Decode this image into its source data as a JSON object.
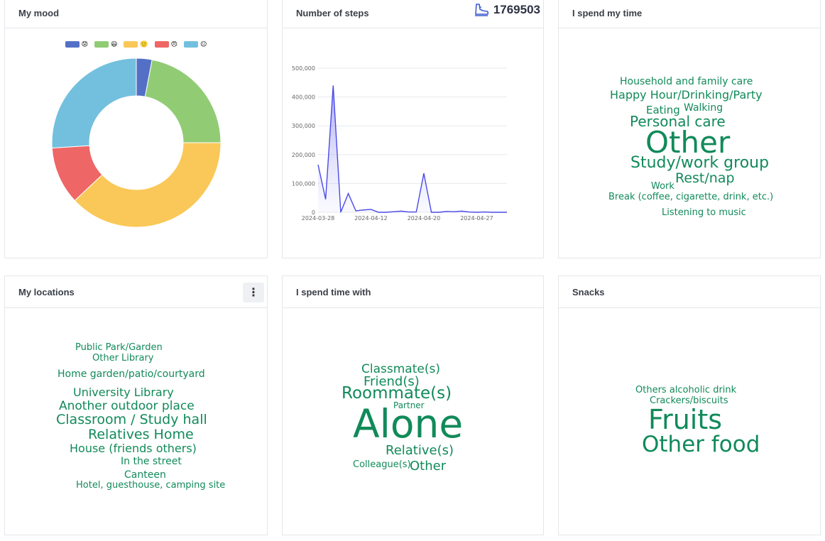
{
  "cards": {
    "mood": {
      "title": "My mood"
    },
    "steps": {
      "title": "Number of steps",
      "total": "1769503"
    },
    "time": {
      "title": "I spend my time"
    },
    "locations": {
      "title": "My locations",
      "menu_label": "⋮"
    },
    "with": {
      "title": "I spend time with"
    },
    "snacks": {
      "title": "Snacks"
    }
  },
  "icons": {
    "steps": "shoe-icon",
    "menu": "kebab-menu-icon"
  },
  "colors": {
    "word_cloud": "#118a5a",
    "steps_line": "#4a4ae8",
    "mood_1": "#5470c6",
    "mood_2": "#91cc75",
    "mood_3": "#fac858",
    "mood_4": "#ee6666",
    "mood_5": "#73c0de"
  },
  "mood_chart": {
    "type": "pie",
    "legend": [
      {
        "emoji": "😟",
        "color": "#5470c6"
      },
      {
        "emoji": "😃",
        "color": "#91cc75"
      },
      {
        "emoji": "🙂",
        "color": "#fac858"
      },
      {
        "emoji": "😠",
        "color": "#ee6666"
      },
      {
        "emoji": "😐",
        "color": "#73c0de"
      }
    ],
    "values": [
      3,
      22,
      38,
      11,
      26
    ]
  },
  "steps_chart": {
    "type": "area",
    "y_ticks": [
      "0",
      "100,000",
      "200,000",
      "300,000",
      "400,000",
      "500,000"
    ],
    "x_ticks": [
      "2024-03-28",
      "2024-04-12",
      "2024-04-20",
      "2024-04-27"
    ],
    "values": [
      165000,
      45000,
      440000,
      0,
      65000,
      5000,
      8000,
      10000,
      0,
      0,
      2000,
      4000,
      1000,
      1000,
      135000,
      0,
      0,
      3000,
      2000,
      4000,
      1000,
      0,
      1000,
      0,
      0,
      0
    ],
    "ylim": [
      0,
      500000
    ]
  },
  "time_cloud": [
    "Household and family care",
    "Happy Hour/Drinking/Party",
    "Eating",
    "Walking",
    "Personal care",
    "Other",
    "Study/work group",
    "Rest/nap",
    "Work",
    "Break (coffee, cigarette, drink, etc.)",
    "Listening to music"
  ],
  "locations_cloud": [
    "Public Park/Garden",
    "Other Library",
    "Home garden/patio/courtyard",
    "University Library",
    "Another outdoor place",
    "Classroom / Study hall",
    "Relatives Home",
    "House (friends others)",
    "In the street",
    "Canteen",
    "Hotel, guesthouse, camping site"
  ],
  "with_cloud": [
    "Classmate(s)",
    "Friend(s)",
    "Roommate(s)",
    "Partner",
    "Alone",
    "Relative(s)",
    "Colleague(s)",
    "Other"
  ],
  "snacks_cloud": [
    "Others alcoholic drink",
    "Crackers/biscuits",
    "Fruits",
    "Other food"
  ]
}
